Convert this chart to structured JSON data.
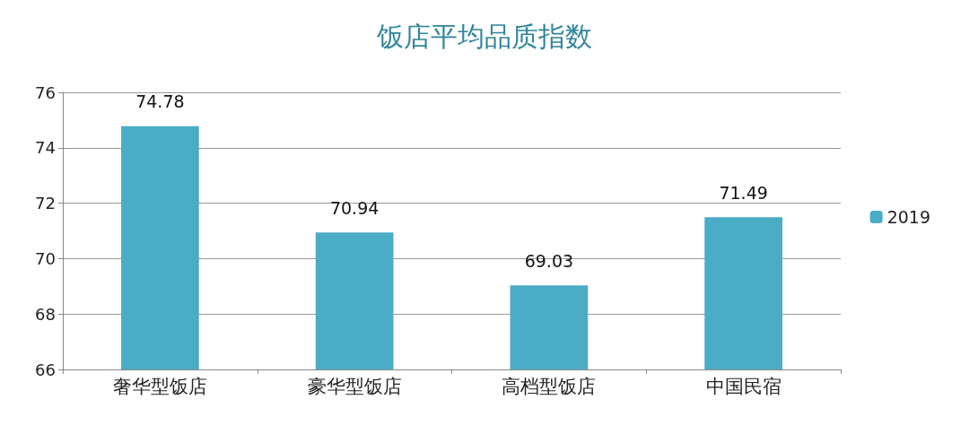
{
  "chart_data": {
    "type": "bar",
    "title": "饭店平均品质指数",
    "categories": [
      "奢华型饭店",
      "豪华型饭店",
      "高档型饭店",
      "中国民宿"
    ],
    "series": [
      {
        "name": "2019",
        "color": "#4bacc6",
        "values": [
          74.78,
          70.94,
          69.03,
          71.49
        ]
      }
    ],
    "ylim": [
      66,
      76
    ],
    "yticks": [
      66,
      68,
      70,
      72,
      74,
      76
    ],
    "grid": "y",
    "legend": "right",
    "data_labels": true
  }
}
